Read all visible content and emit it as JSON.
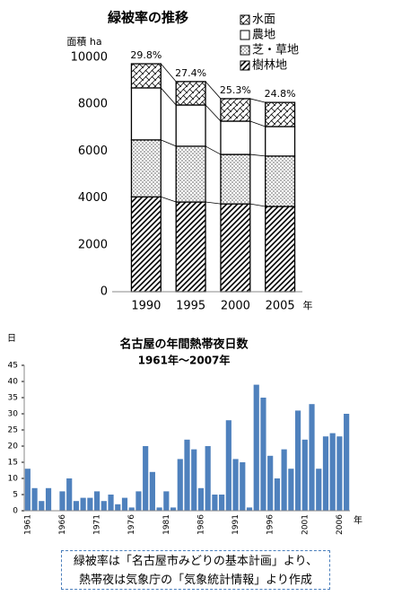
{
  "chart_data": [
    {
      "type": "stacked_bar",
      "title": "緑被率の推移",
      "y_label": "面積 ha",
      "x_label": "年",
      "categories": [
        "1990",
        "1995",
        "2000",
        "2005"
      ],
      "annotations": [
        "29.8%",
        "27.4%",
        "25.3%",
        "24.8%"
      ],
      "series": [
        {
          "name": "樹林地",
          "pattern": "hatch",
          "values": [
            4050,
            3830,
            3750,
            3640
          ]
        },
        {
          "name": "芝・草地",
          "pattern": "dots",
          "values": [
            2430,
            2380,
            2110,
            2150
          ]
        },
        {
          "name": "農地",
          "pattern": "plain",
          "values": [
            2220,
            1760,
            1420,
            1260
          ]
        },
        {
          "name": "水面",
          "pattern": "water",
          "values": [
            1030,
            1000,
            960,
            1030
          ]
        }
      ],
      "ylim": [
        0,
        10000
      ],
      "yticks": [
        0,
        2000,
        4000,
        6000,
        8000,
        10000
      ],
      "legend": "upper right",
      "grid": false
    },
    {
      "type": "bar",
      "title": "名古屋の年間熱帯夜日数",
      "subtitle": "1961年～2007年",
      "y_label": "日",
      "x_label": "年",
      "categories": [
        "1961",
        null,
        null,
        null,
        null,
        "1966",
        null,
        null,
        null,
        null,
        "1971",
        null,
        null,
        null,
        null,
        "1976",
        null,
        null,
        null,
        null,
        "1981",
        null,
        null,
        null,
        null,
        "1986",
        null,
        null,
        null,
        null,
        "1991",
        null,
        null,
        null,
        null,
        "1996",
        null,
        null,
        null,
        null,
        "2001",
        null,
        null,
        null,
        null,
        "2006",
        null
      ],
      "values": [
        13,
        7,
        3,
        7,
        0,
        6,
        10,
        3,
        4,
        4,
        6,
        3,
        5,
        2,
        4,
        1,
        6,
        20,
        12,
        1,
        6,
        1,
        16,
        22,
        19,
        7,
        20,
        5,
        5,
        28,
        16,
        15,
        1,
        39,
        35,
        17,
        10,
        19,
        13,
        31,
        22,
        33,
        13,
        23,
        24,
        23,
        30
      ],
      "color": "#4f81bd",
      "ylim": [
        0,
        45
      ],
      "yticks": [
        0,
        5,
        10,
        15,
        20,
        25,
        30,
        35,
        40,
        45
      ],
      "grid": false
    }
  ],
  "note": {
    "lines": [
      "緑被率は「名古屋市みどりの基本計画」より、",
      "熱帯夜は気象庁の「気象統計情報」より作成"
    ]
  }
}
